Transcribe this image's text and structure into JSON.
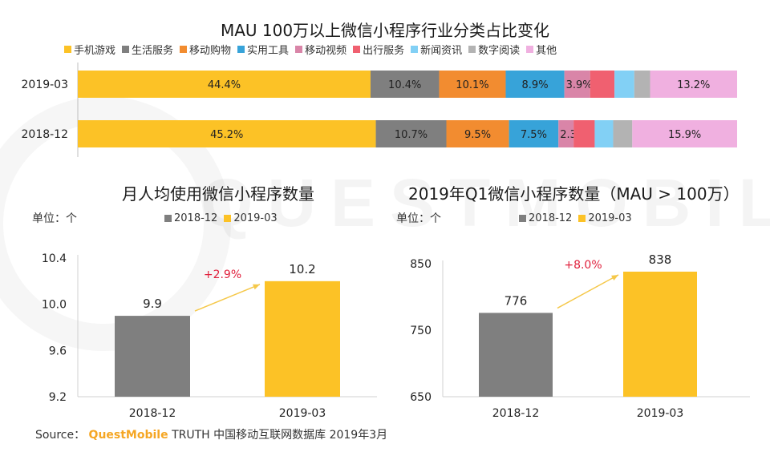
{
  "source": {
    "label": "Source：",
    "brand": "QuestMobile",
    "text": "TRUTH 中国移动互联网数据库 2019年3月"
  },
  "watermark": "QUESTMOBILE",
  "colors": {
    "gold": "#fcc226",
    "gray": "#7f7f7f",
    "orange": "#f28c30",
    "blue": "#37a3d9",
    "pink": "#d985a8",
    "red": "#f06070",
    "lightblue": "#82d0f5",
    "lightgray": "#b3b3b3",
    "lightpink": "#f0b0e0",
    "arrow": "#f5c84a",
    "growth": "#e0203c"
  },
  "chart_data": [
    {
      "type": "bar",
      "orientation": "horizontal",
      "stacked": true,
      "title": "MAU 100万以上微信小程序行业分类占比变化",
      "categories": [
        "2019-03",
        "2018-12"
      ],
      "series": [
        {
          "name": "手机游戏",
          "color": "#fcc226",
          "values": [
            44.4,
            45.2
          ],
          "labels": [
            "44.4%",
            "45.2%"
          ]
        },
        {
          "name": "生活服务",
          "color": "#7f7f7f",
          "values": [
            10.4,
            10.7
          ],
          "labels": [
            "10.4%",
            "10.7%"
          ]
        },
        {
          "name": "移动购物",
          "color": "#f28c30",
          "values": [
            10.1,
            9.5
          ],
          "labels": [
            "10.1%",
            "9.5%"
          ]
        },
        {
          "name": "实用工具",
          "color": "#37a3d9",
          "values": [
            8.9,
            7.5
          ],
          "labels": [
            "8.9%",
            "7.5%"
          ]
        },
        {
          "name": "移动视频",
          "color": "#d985a8",
          "values": [
            3.9,
            2.3
          ],
          "labels": [
            "3.9%",
            "2.3%"
          ]
        },
        {
          "name": "出行服务",
          "color": "#f06070",
          "values": [
            3.7,
            3.2
          ],
          "labels": [
            "",
            ""
          ]
        },
        {
          "name": "新闻资讯",
          "color": "#82d0f5",
          "values": [
            3.0,
            2.8
          ],
          "labels": [
            "",
            ""
          ]
        },
        {
          "name": "数字阅读",
          "color": "#b3b3b3",
          "values": [
            2.4,
            2.9
          ],
          "labels": [
            "",
            ""
          ]
        },
        {
          "name": "其他",
          "color": "#f0b0e0",
          "values": [
            13.2,
            15.9
          ],
          "labels": [
            "13.2%",
            "15.9%"
          ]
        }
      ],
      "xlim": [
        0,
        100
      ]
    },
    {
      "type": "bar",
      "title": "月人均使用微信小程序数量",
      "unit": "单位：个",
      "categories": [
        "2018-12",
        "2019-03"
      ],
      "values": [
        9.9,
        10.2
      ],
      "value_labels": [
        "9.9",
        "10.2"
      ],
      "colors": [
        "#7f7f7f",
        "#fcc226"
      ],
      "legend": [
        "2018-12",
        "2019-03"
      ],
      "growth_label": "+2.9%",
      "ylim": [
        9.2,
        10.4
      ],
      "yticks": [
        "9.2",
        "9.6",
        "10.0",
        "10.4"
      ],
      "ytick_values": [
        9.2,
        9.6,
        10.0,
        10.4
      ]
    },
    {
      "type": "bar",
      "title": "2019年Q1微信小程序数量（MAU > 100万）",
      "unit": "单位：个",
      "categories": [
        "2018-12",
        "2019-03"
      ],
      "values": [
        776,
        838
      ],
      "value_labels": [
        "776",
        "838"
      ],
      "colors": [
        "#7f7f7f",
        "#fcc226"
      ],
      "legend": [
        "2018-12",
        "2019-03"
      ],
      "growth_label": "+8.0%",
      "ylim": [
        650,
        850
      ],
      "yticks": [
        "650",
        "750",
        "850"
      ],
      "ytick_values": [
        650,
        750,
        850
      ]
    }
  ]
}
